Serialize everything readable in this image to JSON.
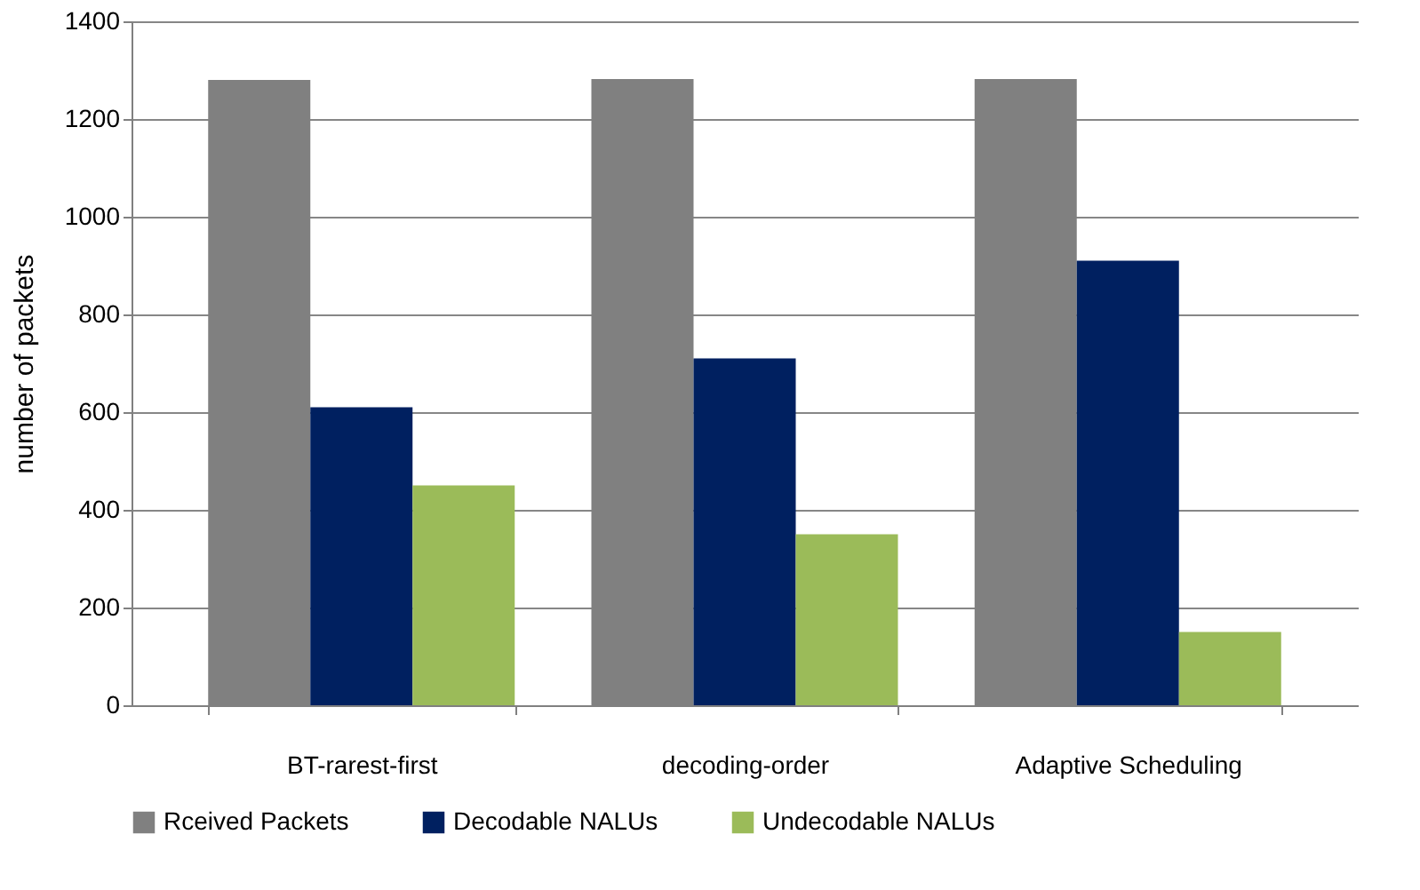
{
  "chart_data": {
    "type": "bar",
    "ylabel": "number of packets",
    "categories": [
      "BT-rarest-first",
      "decoding-order",
      "Adaptive Scheduling"
    ],
    "series": [
      {
        "name": "Rceived Packets",
        "color": "#808080",
        "values": [
          1280,
          1282,
          1282
        ]
      },
      {
        "name": "Decodable NALUs",
        "color": "#002060",
        "values": [
          610,
          710,
          910
        ]
      },
      {
        "name": "Undecodable NALUs",
        "color": "#9bbb59",
        "values": [
          450,
          350,
          150
        ]
      }
    ],
    "ylim": [
      0,
      1400
    ],
    "yticks": [
      0,
      200,
      400,
      600,
      800,
      1000,
      1200,
      1400
    ],
    "grid": "y",
    "legend": "bottom"
  }
}
